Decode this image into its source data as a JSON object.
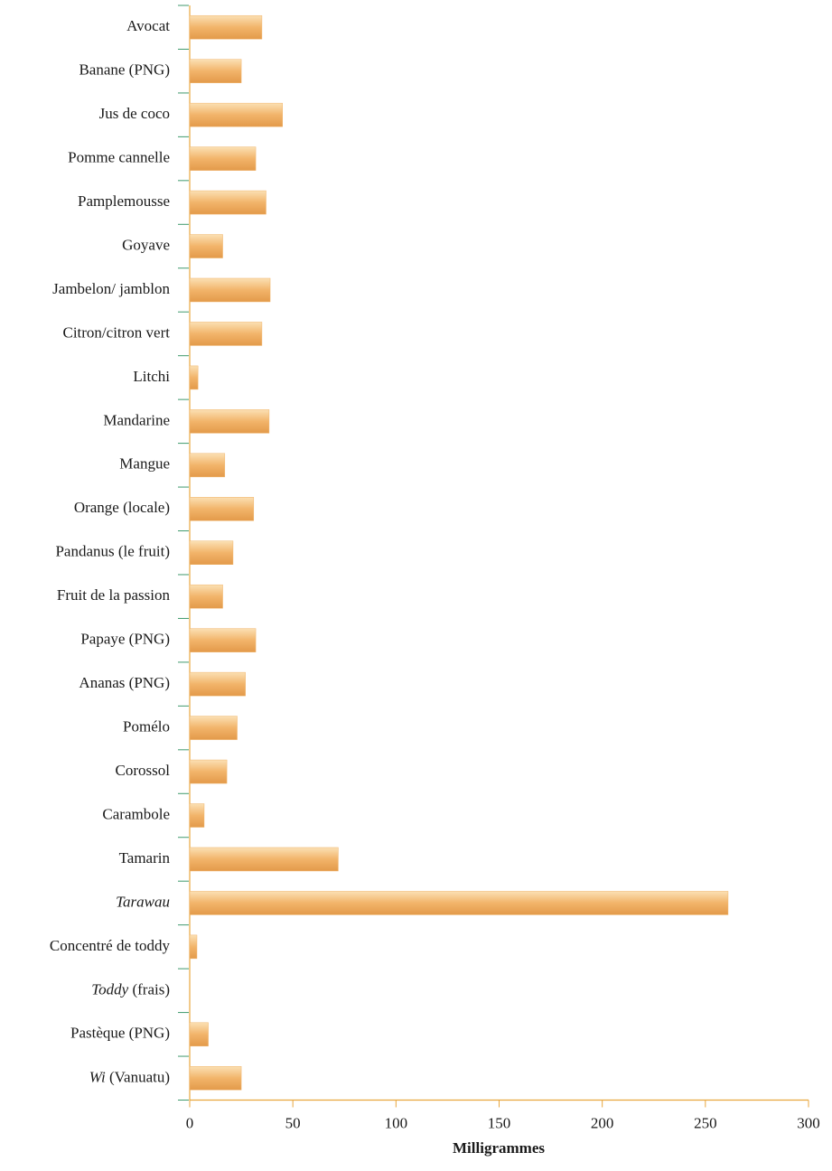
{
  "chart_data": {
    "type": "hbar",
    "x_label": "Milligrammes",
    "categories": [
      "Avocat",
      "Banane (PNG)",
      "Jus de coco",
      "Pomme cannelle",
      "Pamplemousse",
      "Goyave",
      "Jambelon/ jamblon",
      "Citron/citron vert",
      "Litchi",
      "Mandarine",
      "Mangue",
      "Orange (locale)",
      "Pandanus (le fruit)",
      "Fruit de la passion",
      "Papaye (PNG)",
      "Ananas (PNG)",
      "Pomélo",
      "Corossol",
      "Carambole",
      "Tamarin",
      {
        "italic": "Tarawau"
      },
      "Concentré de toddy",
      {
        "italic": "Toddy",
        "rest": " (frais)"
      },
      "Pastèque (PNG)",
      {
        "italic": "Wi",
        "rest": " (Vanuatu)"
      }
    ],
    "values": [
      35,
      25,
      45,
      32,
      37,
      16,
      39,
      35,
      4,
      38.5,
      17,
      31,
      21,
      16,
      32,
      27,
      23,
      18,
      7,
      72,
      261,
      3.5,
      0,
      9,
      25
    ],
    "color": "#f0b46a",
    "xlim": [
      0,
      300
    ],
    "xticks": [
      0,
      50,
      100,
      150,
      200,
      250,
      300
    ]
  }
}
